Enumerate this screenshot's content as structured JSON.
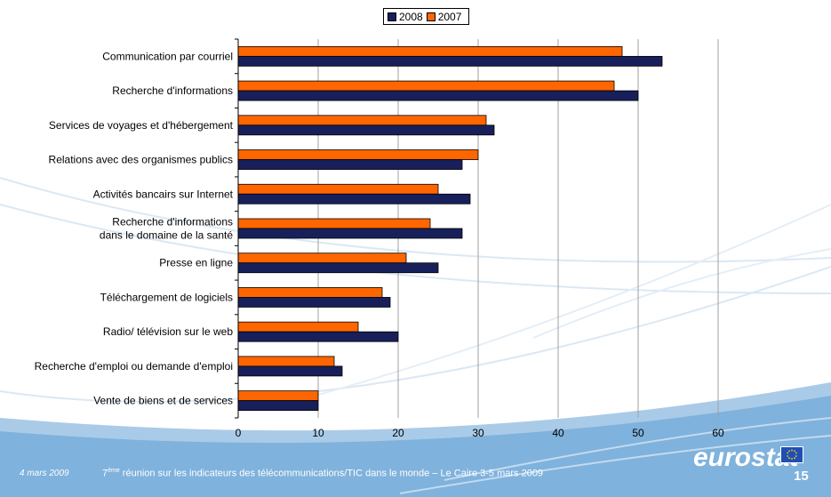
{
  "chart_data": {
    "type": "bar",
    "orientation": "horizontal",
    "categories": [
      "Communication par courriel",
      "Recherche d'informations",
      "Services de voyages et d'hébergement",
      "Relations avec des organismes publics",
      "Activités bancairs sur Internet",
      "Recherche d'informations\ndans le domaine de la santé",
      "Presse en ligne",
      "Téléchargement de logiciels",
      "Radio/ télévision sur le web",
      "Recherche d'emploi ou demande d'emploi",
      "Vente de biens et de services"
    ],
    "series": [
      {
        "name": "2008",
        "color": "#17205a",
        "values": [
          53,
          50,
          32,
          28,
          29,
          28,
          25,
          19,
          20,
          13,
          10
        ]
      },
      {
        "name": "2007",
        "color": "#ff6600",
        "values": [
          48,
          47,
          31,
          30,
          25,
          24,
          21,
          18,
          15,
          12,
          10
        ]
      }
    ],
    "xlim": [
      0,
      60
    ],
    "xticks": [
      0,
      10,
      20,
      30,
      40,
      50,
      60
    ],
    "grid": true,
    "legend_position": "top-center",
    "title": "",
    "xlabel": "",
    "ylabel": ""
  },
  "legend": {
    "label_2008": "2008",
    "label_2007": "2007"
  },
  "footer": {
    "date": "4 mars 2009",
    "text_sup": "ème",
    "text_prefix": "7",
    "text_rest": " réunion sur les indicateurs des télécommunications/TIC dans le monde – Le Caire 3-5 mars 2009",
    "logo": "eurostat",
    "page_number": "15"
  },
  "colors": {
    "band": "#7fb2dc",
    "band_light": "#a9cbe8",
    "swirl": "#cfe0ef"
  }
}
